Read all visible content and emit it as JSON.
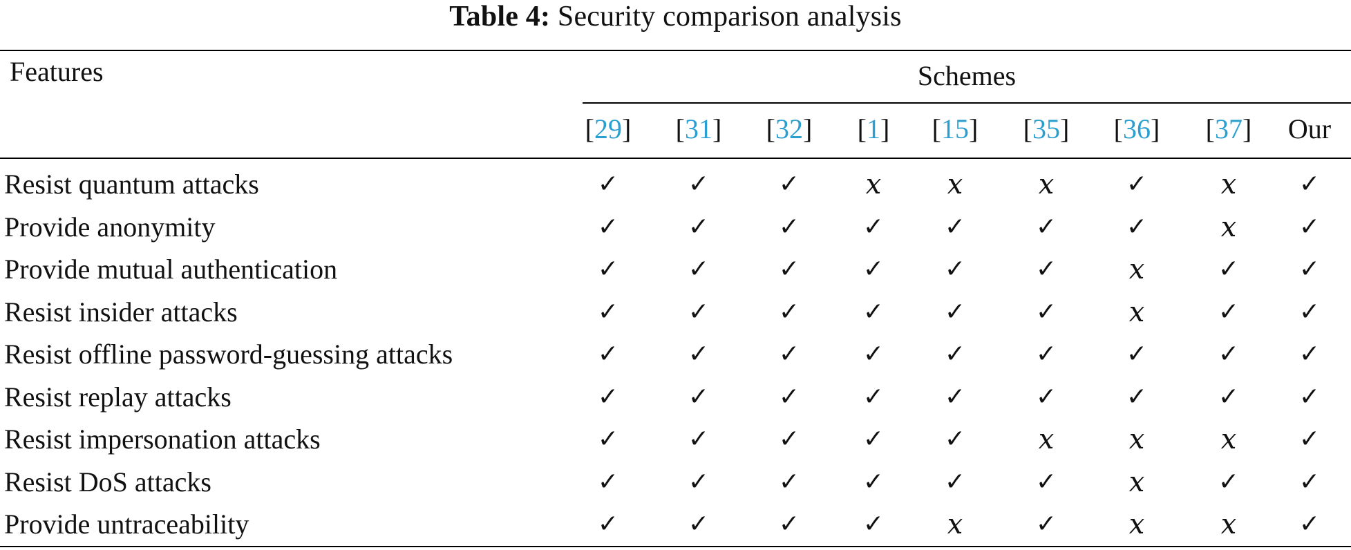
{
  "caption": {
    "label": "Table 4:",
    "title": "Security comparison analysis"
  },
  "header": {
    "features": "Features",
    "schemes": "Schemes"
  },
  "columns": [
    {
      "open": "[",
      "ref": "29",
      "close": "]"
    },
    {
      "open": "[",
      "ref": "31",
      "close": "]"
    },
    {
      "open": "[",
      "ref": "32",
      "close": "]"
    },
    {
      "open": "[",
      "ref": "1",
      "close": "]"
    },
    {
      "open": "[",
      "ref": "15",
      "close": "]"
    },
    {
      "open": "[",
      "ref": "35",
      "close": "]"
    },
    {
      "open": "[",
      "ref": "36",
      "close": "]"
    },
    {
      "open": "[",
      "ref": "37",
      "close": "]"
    },
    {
      "open": "",
      "ref": "",
      "close": "",
      "plain": "Our"
    }
  ],
  "symbols": {
    "yes": "✓",
    "no": "x"
  },
  "rows": [
    {
      "feature": "Resist quantum attacks",
      "marks": [
        1,
        1,
        1,
        0,
        0,
        0,
        1,
        0,
        1
      ]
    },
    {
      "feature": "Provide anonymity",
      "marks": [
        1,
        1,
        1,
        1,
        1,
        1,
        1,
        0,
        1
      ]
    },
    {
      "feature": "Provide mutual authentication",
      "marks": [
        1,
        1,
        1,
        1,
        1,
        1,
        0,
        1,
        1
      ]
    },
    {
      "feature": "Resist insider attacks",
      "marks": [
        1,
        1,
        1,
        1,
        1,
        1,
        0,
        1,
        1
      ]
    },
    {
      "feature": "Resist offline password-guessing attacks",
      "marks": [
        1,
        1,
        1,
        1,
        1,
        1,
        1,
        1,
        1
      ]
    },
    {
      "feature": "Resist replay attacks",
      "marks": [
        1,
        1,
        1,
        1,
        1,
        1,
        1,
        1,
        1
      ]
    },
    {
      "feature": "Resist impersonation attacks",
      "marks": [
        1,
        1,
        1,
        1,
        1,
        0,
        0,
        0,
        1
      ]
    },
    {
      "feature": "Resist DoS attacks",
      "marks": [
        1,
        1,
        1,
        1,
        1,
        1,
        0,
        1,
        1
      ]
    },
    {
      "feature": "Provide untraceability",
      "marks": [
        1,
        1,
        1,
        1,
        0,
        1,
        0,
        0,
        1
      ]
    }
  ],
  "colors": {
    "reference_link": "#2a9fd0",
    "text": "#111111",
    "rule": "#000000"
  }
}
